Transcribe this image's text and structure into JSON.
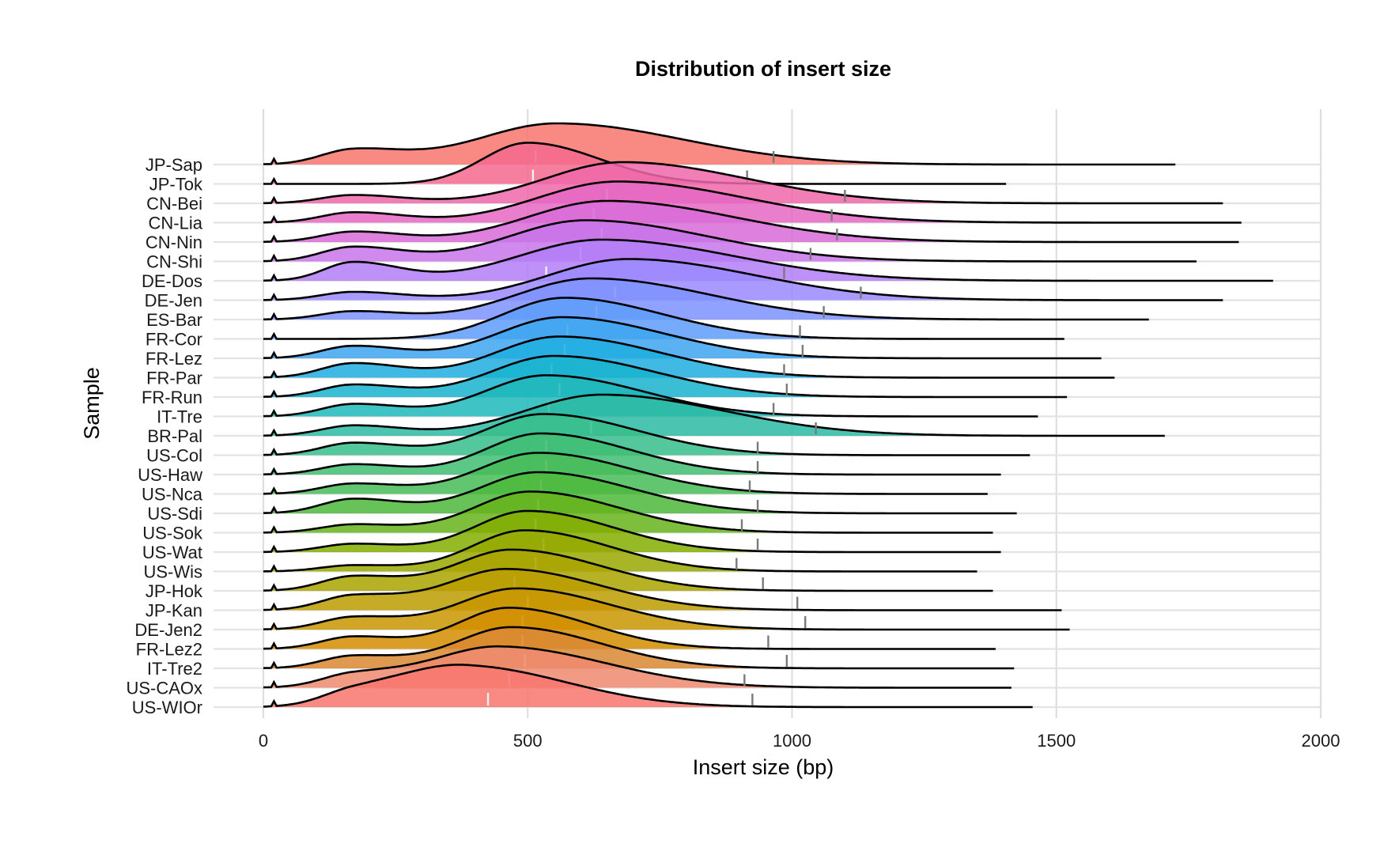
{
  "chart_data": {
    "type": "ridgeline",
    "title": "Distribution of insert size",
    "xlabel": "Insert size (bp)",
    "ylabel": "Sample",
    "xlim": [
      0,
      2000
    ],
    "x_ticks": [
      0,
      500,
      1000,
      1500,
      2000
    ],
    "x_tick_labels": [
      "0",
      "500",
      "1000",
      "1500",
      "2000"
    ],
    "grid": "major, light grey",
    "series": [
      {
        "name": "JP-Sap",
        "color": "#F8766D",
        "peaks": [
          [
            555,
            150,
            1.0
          ],
          [
            170,
            60,
            0.35
          ]
        ],
        "tail_end": 1725,
        "median": 515,
        "p95": 965
      },
      {
        "name": "JP-Tok",
        "color": "#F5698E",
        "peaks": [
          [
            500,
            85,
            1.0
          ]
        ],
        "tail_end": 1405,
        "median": 510,
        "p95": 915
      },
      {
        "name": "CN-Bei",
        "color": "#EF67A9",
        "peaks": [
          [
            680,
            145,
            1.0
          ],
          [
            170,
            60,
            0.2
          ]
        ],
        "tail_end": 1815,
        "median": 650,
        "p95": 1100
      },
      {
        "name": "CN-Lia",
        "color": "#E567C4",
        "peaks": [
          [
            670,
            150,
            1.0
          ],
          [
            170,
            60,
            0.25
          ]
        ],
        "tail_end": 1850,
        "median": 625,
        "p95": 1075
      },
      {
        "name": "CN-Nin",
        "color": "#D86BD8",
        "peaks": [
          [
            650,
            150,
            1.0
          ],
          [
            170,
            60,
            0.25
          ]
        ],
        "tail_end": 1845,
        "median": 640,
        "p95": 1085
      },
      {
        "name": "CN-Shi",
        "color": "#C874EA",
        "peaks": [
          [
            610,
            145,
            1.0
          ],
          [
            170,
            60,
            0.35
          ]
        ],
        "tail_end": 1765,
        "median": 600,
        "p95": 1035
      },
      {
        "name": "DE-Dos",
        "color": "#B37EF7",
        "peaks": [
          [
            640,
            155,
            1.0
          ],
          [
            170,
            55,
            0.45
          ]
        ],
        "tail_end": 1910,
        "median": 535,
        "p95": 985
      },
      {
        "name": "DE-Jen",
        "color": "#9A88FF",
        "peaks": [
          [
            690,
            150,
            1.0
          ],
          [
            170,
            60,
            0.2
          ]
        ],
        "tail_end": 1815,
        "median": 665,
        "p95": 1130
      },
      {
        "name": "ES-Bar",
        "color": "#7D92FF",
        "peaks": [
          [
            620,
            140,
            1.0
          ],
          [
            170,
            60,
            0.2
          ]
        ],
        "tail_end": 1675,
        "median": 630,
        "p95": 1060
      },
      {
        "name": "FR-Cor",
        "color": "#5E9CFA",
        "peaks": [
          [
            570,
            115,
            1.0
          ]
        ],
        "tail_end": 1515,
        "median": 575,
        "p95": 1015
      },
      {
        "name": "FR-Lez",
        "color": "#3DA5F0",
        "peaks": [
          [
            565,
            120,
            1.0
          ],
          [
            170,
            60,
            0.3
          ]
        ],
        "tail_end": 1585,
        "median": 570,
        "p95": 1020
      },
      {
        "name": "FR-Par",
        "color": "#1FADE1",
        "peaks": [
          [
            560,
            120,
            1.0
          ],
          [
            170,
            60,
            0.35
          ]
        ],
        "tail_end": 1610,
        "median": 545,
        "p95": 985
      },
      {
        "name": "FR-Run",
        "color": "#17B3CF",
        "peaks": [
          [
            550,
            120,
            1.0
          ],
          [
            170,
            60,
            0.3
          ]
        ],
        "tail_end": 1520,
        "median": 560,
        "p95": 990
      },
      {
        "name": "IT-Tre",
        "color": "#1EB8BA",
        "peaks": [
          [
            535,
            115,
            1.0
          ],
          [
            170,
            60,
            0.3
          ]
        ],
        "tail_end": 1465,
        "median": 540,
        "p95": 965
      },
      {
        "name": "BR-Pal",
        "color": "#2BBBA3",
        "peaks": [
          [
            640,
            145,
            1.0
          ],
          [
            170,
            60,
            0.25
          ]
        ],
        "tail_end": 1705,
        "median": 620,
        "p95": 1045
      },
      {
        "name": "US-Col",
        "color": "#37BD8B",
        "peaks": [
          [
            530,
            110,
            1.0
          ],
          [
            170,
            60,
            0.3
          ]
        ],
        "tail_end": 1450,
        "median": 535,
        "p95": 935
      },
      {
        "name": "US-Haw",
        "color": "#40BD72",
        "peaks": [
          [
            525,
            105,
            1.0
          ],
          [
            170,
            60,
            0.25
          ]
        ],
        "tail_end": 1395,
        "median": 535,
        "p95": 935
      },
      {
        "name": "US-Nca",
        "color": "#47BC57",
        "peaks": [
          [
            520,
            110,
            1.0
          ],
          [
            170,
            60,
            0.25
          ]
        ],
        "tail_end": 1370,
        "median": 525,
        "p95": 920
      },
      {
        "name": "US-Sdi",
        "color": "#4CB93A",
        "peaks": [
          [
            520,
            110,
            1.0
          ],
          [
            170,
            60,
            0.35
          ]
        ],
        "tail_end": 1425,
        "median": 520,
        "p95": 935
      },
      {
        "name": "US-Sok",
        "color": "#66B31A",
        "peaks": [
          [
            505,
            105,
            1.0
          ],
          [
            170,
            60,
            0.2
          ]
        ],
        "tail_end": 1380,
        "median": 515,
        "p95": 905
      },
      {
        "name": "US-Wat",
        "color": "#83AE00",
        "peaks": [
          [
            500,
            100,
            1.0
          ],
          [
            170,
            60,
            0.2
          ]
        ],
        "tail_end": 1395,
        "median": 530,
        "p95": 935
      },
      {
        "name": "US-Wis",
        "color": "#98A800",
        "peaks": [
          [
            495,
            100,
            1.0
          ],
          [
            170,
            60,
            0.15
          ]
        ],
        "tail_end": 1350,
        "median": 515,
        "p95": 895
      },
      {
        "name": "JP-Hok",
        "color": "#AAA300",
        "peaks": [
          [
            470,
            105,
            1.0
          ],
          [
            170,
            60,
            0.35
          ]
        ],
        "tail_end": 1380,
        "median": 475,
        "p95": 945
      },
      {
        "name": "JP-Kan",
        "color": "#BB9C00",
        "peaks": [
          [
            460,
            110,
            1.0
          ],
          [
            170,
            60,
            0.35
          ]
        ],
        "tail_end": 1510,
        "median": 500,
        "p95": 1010
      },
      {
        "name": "DE-Jen2",
        "color": "#C99500",
        "peaks": [
          [
            480,
            110,
            1.0
          ],
          [
            170,
            60,
            0.3
          ]
        ],
        "tail_end": 1525,
        "median": 490,
        "p95": 1025
      },
      {
        "name": "FR-Lez2",
        "color": "#D38D00",
        "peaks": [
          [
            465,
            95,
            1.0
          ],
          [
            170,
            60,
            0.3
          ]
        ],
        "tail_end": 1385,
        "median": 490,
        "p95": 955
      },
      {
        "name": "IT-Tre2",
        "color": "#DA8731",
        "peaks": [
          [
            470,
            105,
            1.0
          ],
          [
            170,
            60,
            0.3
          ]
        ],
        "tail_end": 1420,
        "median": 495,
        "p95": 990
      },
      {
        "name": "US-CAOx",
        "color": "#EE8A6F",
        "peaks": [
          [
            445,
            125,
            1.0
          ],
          [
            170,
            60,
            0.3
          ]
        ],
        "tail_end": 1415,
        "median": 465,
        "p95": 910
      },
      {
        "name": "US-WIOr",
        "color": "#F8766D",
        "peaks": [
          [
            380,
            120,
            1.0
          ],
          [
            170,
            60,
            0.3
          ]
        ],
        "tail_end": 1455,
        "median": 425,
        "p95": 925
      }
    ]
  }
}
